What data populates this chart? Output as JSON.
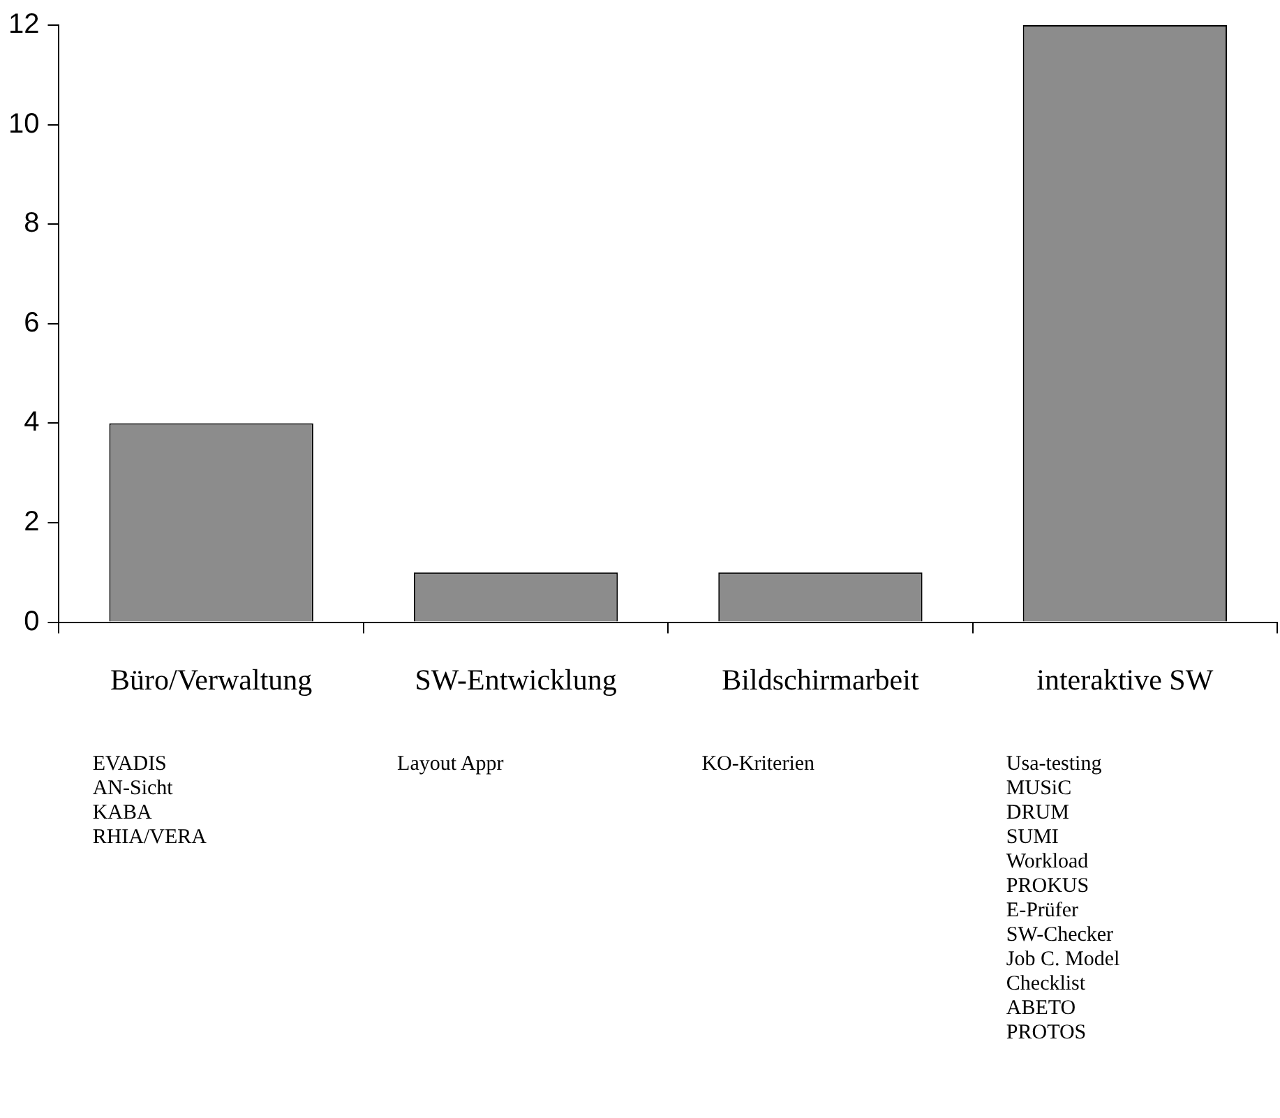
{
  "chart_data": {
    "type": "bar",
    "categories": [
      "Büro/Verwaltung",
      "SW-Entwicklung",
      "Bildschirmarbeit",
      "interaktive SW"
    ],
    "values": [
      4,
      1,
      1,
      12
    ],
    "color": "#8c8c8c",
    "ylim": [
      0,
      12
    ],
    "yticks": [
      0,
      2,
      4,
      6,
      8,
      10,
      12
    ],
    "grid": false,
    "annotations": [
      "EVADIS\nAN-Sicht\nKABA\nRHIA/VERA",
      "Layout Appr",
      "KO-Kriterien",
      "Usa-testing\nMUSiC\nDRUM\nSUMI\nWorkload\nPROKUS\nE-Prüfer\nSW-Checker\nJob C. Model\nChecklist\nABETO\nPROTOS"
    ]
  }
}
